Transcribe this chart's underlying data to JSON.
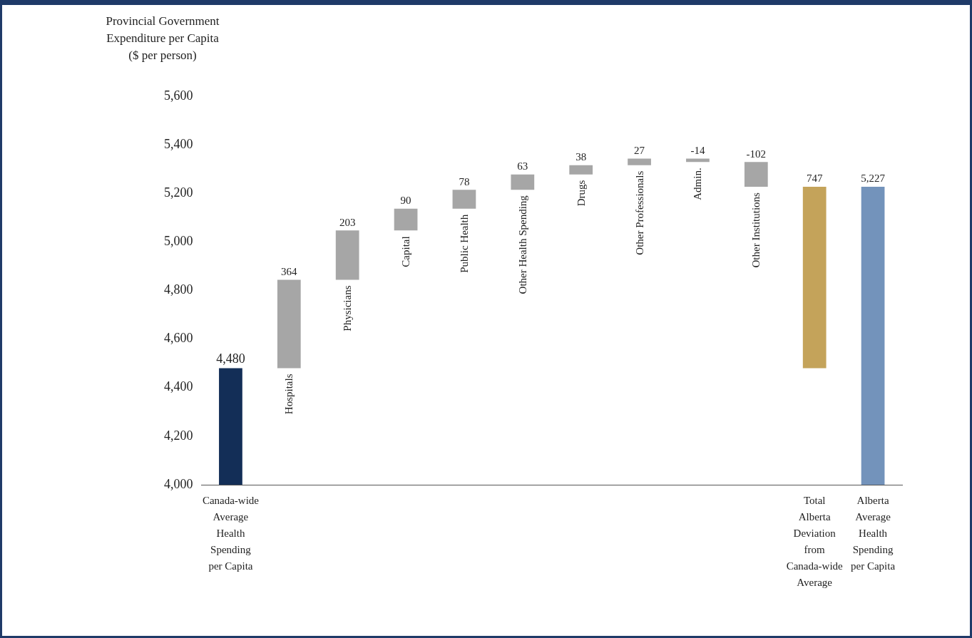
{
  "chart_data": {
    "type": "bar",
    "ylabel": "Provincial Government Expenditure per Capita ($ per person)",
    "categories": [
      "Canada-wide Average Health Spending per Capita",
      "Hospitals",
      "Physicians",
      "Capital",
      "Public Health",
      "Other Health Spending",
      "Drugs",
      "Other Professionals",
      "Admin.",
      "Other Institutions",
      "Total Alberta Deviation from Canada-wide Average",
      "Alberta Average Health Spending per Capita"
    ],
    "values": [
      4480,
      364,
      203,
      90,
      78,
      63,
      38,
      27,
      -14,
      -102,
      747,
      5227
    ],
    "base": [
      null,
      4480,
      4844,
      5047,
      5137,
      5215,
      5278,
      5316,
      5343,
      5329,
      4480,
      null
    ],
    "colors": [
      "#132e57",
      "#a6a6a6",
      "#a6a6a6",
      "#a6a6a6",
      "#a6a6a6",
      "#a6a6a6",
      "#a6a6a6",
      "#a6a6a6",
      "#a6a6a6",
      "#a6a6a6",
      "#c4a35a",
      "#7393bb"
    ],
    "value_labels": [
      "4,480",
      "364",
      "203",
      "90",
      "78",
      "63",
      "38",
      "27",
      "-14",
      "-102",
      "747",
      "5,227"
    ],
    "ylim": [
      4000,
      5600
    ],
    "yticks": [
      {
        "value": 4000,
        "label": "4,000"
      },
      {
        "value": 4200,
        "label": "4,200"
      },
      {
        "value": 4400,
        "label": "4,400"
      },
      {
        "value": 4600,
        "label": "4,600"
      },
      {
        "value": 4800,
        "label": "4,800"
      },
      {
        "value": 5000,
        "label": "5,000"
      },
      {
        "value": 5200,
        "label": "5,200"
      },
      {
        "value": 5400,
        "label": "5,400"
      },
      {
        "value": 5600,
        "label": "5,600"
      }
    ],
    "grid": false,
    "legend": false
  }
}
